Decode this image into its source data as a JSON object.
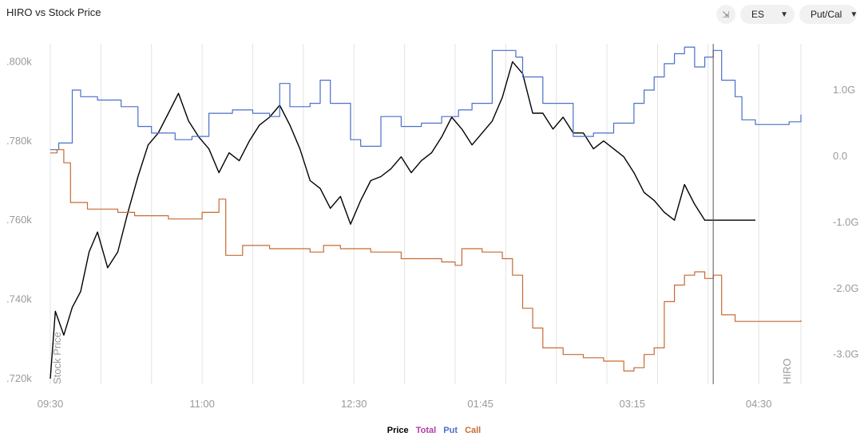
{
  "title": "HIRO vs Stock Price",
  "controls": {
    "collapse_icon": "collapse-icon",
    "ticker": "ES",
    "mode": "Put/Cal"
  },
  "colors": {
    "price": "#000000",
    "total": "#b43ca8",
    "put": "#4a6fc9",
    "call": "#c86a32",
    "grid": "#e3e3e3",
    "axis_text": "#9a9a9a"
  },
  "chart_data": {
    "type": "line",
    "xlabel": "",
    "ylabel_left": "Stock Price",
    "ylabel_right": "HIRO",
    "x_ticks": [
      "09:30",
      "11:00",
      "12:30",
      "01:45",
      "03:15",
      "04:30"
    ],
    "x_range": [
      "09:30",
      "04:55"
    ],
    "y_left_ticks": [
      ".720k",
      ".740k",
      ".760k",
      ".780k",
      ".800k"
    ],
    "y_left_range": [
      0.7186,
      0.8045
    ],
    "y_right_ticks": [
      "1.0G",
      "0.0",
      "-1.0G",
      "-2.0G",
      "-3.0G"
    ],
    "y_right_range": [
      -3.45,
      1.7
    ],
    "legend": [
      "Price",
      "Total",
      "Put",
      "Call"
    ],
    "legend_placement": "bottom",
    "cursor_time": "04:03",
    "series": [
      {
        "name": "Price",
        "axis": "left",
        "step": false,
        "points": [
          [
            "09:30",
            0.72
          ],
          [
            "09:33",
            0.737
          ],
          [
            "09:38",
            0.731
          ],
          [
            "09:43",
            0.738
          ],
          [
            "09:48",
            0.742
          ],
          [
            "09:53",
            0.752
          ],
          [
            "09:58",
            0.757
          ],
          [
            "10:04",
            0.748
          ],
          [
            "10:10",
            0.752
          ],
          [
            "10:16",
            0.762
          ],
          [
            "10:22",
            0.771
          ],
          [
            "10:28",
            0.779
          ],
          [
            "10:34",
            0.782
          ],
          [
            "10:40",
            0.787
          ],
          [
            "10:46",
            0.792
          ],
          [
            "10:52",
            0.785
          ],
          [
            "10:58",
            0.781
          ],
          [
            "11:04",
            0.778
          ],
          [
            "11:10",
            0.772
          ],
          [
            "11:16",
            0.777
          ],
          [
            "11:22",
            0.775
          ],
          [
            "11:28",
            0.78
          ],
          [
            "11:34",
            0.784
          ],
          [
            "11:40",
            0.786
          ],
          [
            "11:46",
            0.789
          ],
          [
            "11:52",
            0.784
          ],
          [
            "11:58",
            0.778
          ],
          [
            "12:04",
            0.77
          ],
          [
            "12:10",
            0.768
          ],
          [
            "12:16",
            0.763
          ],
          [
            "12:22",
            0.766
          ],
          [
            "12:28",
            0.759
          ],
          [
            "12:34",
            0.765
          ],
          [
            "12:40",
            0.77
          ],
          [
            "12:46",
            0.771
          ],
          [
            "12:52",
            0.773
          ],
          [
            "12:58",
            0.776
          ],
          [
            "01:04",
            0.772
          ],
          [
            "01:10",
            0.775
          ],
          [
            "01:16",
            0.777
          ],
          [
            "01:22",
            0.781
          ],
          [
            "01:28",
            0.786
          ],
          [
            "01:34",
            0.783
          ],
          [
            "01:40",
            0.779
          ],
          [
            "01:46",
            0.782
          ],
          [
            "01:52",
            0.785
          ],
          [
            "01:58",
            0.791
          ],
          [
            "02:04",
            0.8
          ],
          [
            "02:10",
            0.797
          ],
          [
            "02:16",
            0.787
          ],
          [
            "02:22",
            0.787
          ],
          [
            "02:28",
            0.783
          ],
          [
            "02:34",
            0.786
          ],
          [
            "02:40",
            0.782
          ],
          [
            "02:46",
            0.782
          ],
          [
            "02:52",
            0.778
          ],
          [
            "02:58",
            0.78
          ],
          [
            "03:04",
            0.778
          ],
          [
            "03:10",
            0.776
          ],
          [
            "03:16",
            0.772
          ],
          [
            "03:22",
            0.767
          ],
          [
            "03:28",
            0.765
          ],
          [
            "03:34",
            0.762
          ],
          [
            "03:40",
            0.76
          ],
          [
            "03:46",
            0.769
          ],
          [
            "03:52",
            0.764
          ],
          [
            "03:58",
            0.76
          ],
          [
            "04:03",
            0.76
          ],
          [
            "04:28",
            0.76
          ]
        ]
      },
      {
        "name": "Put",
        "axis": "right",
        "step": true,
        "points": [
          [
            "09:30",
            0.1
          ],
          [
            "09:35",
            0.2
          ],
          [
            "09:43",
            1.0
          ],
          [
            "09:48",
            0.9
          ],
          [
            "09:58",
            0.85
          ],
          [
            "10:12",
            0.75
          ],
          [
            "10:22",
            0.45
          ],
          [
            "10:30",
            0.35
          ],
          [
            "10:44",
            0.25
          ],
          [
            "10:54",
            0.3
          ],
          [
            "11:04",
            0.65
          ],
          [
            "11:18",
            0.7
          ],
          [
            "11:30",
            0.65
          ],
          [
            "11:40",
            0.6
          ],
          [
            "11:46",
            1.1
          ],
          [
            "11:52",
            0.75
          ],
          [
            "12:04",
            0.8
          ],
          [
            "12:10",
            1.15
          ],
          [
            "12:16",
            0.8
          ],
          [
            "12:28",
            0.25
          ],
          [
            "12:34",
            0.15
          ],
          [
            "12:46",
            0.6
          ],
          [
            "12:58",
            0.45
          ],
          [
            "01:10",
            0.5
          ],
          [
            "01:22",
            0.6
          ],
          [
            "01:32",
            0.7
          ],
          [
            "01:40",
            0.8
          ],
          [
            "01:52",
            1.6
          ],
          [
            "02:06",
            1.5
          ],
          [
            "02:10",
            1.2
          ],
          [
            "02:16",
            1.2
          ],
          [
            "02:22",
            0.8
          ],
          [
            "02:40",
            0.3
          ],
          [
            "02:52",
            0.35
          ],
          [
            "03:04",
            0.5
          ],
          [
            "03:16",
            0.8
          ],
          [
            "03:22",
            1.0
          ],
          [
            "03:28",
            1.2
          ],
          [
            "03:34",
            1.4
          ],
          [
            "03:40",
            1.55
          ],
          [
            "03:46",
            1.65
          ],
          [
            "03:52",
            1.35
          ],
          [
            "03:58",
            1.5
          ],
          [
            "04:03",
            1.6
          ],
          [
            "04:08",
            1.15
          ],
          [
            "04:16",
            0.9
          ],
          [
            "04:20",
            0.55
          ],
          [
            "04:28",
            0.48
          ],
          [
            "04:40",
            0.48
          ],
          [
            "04:48",
            0.52
          ],
          [
            "04:55",
            0.63
          ]
        ]
      },
      {
        "name": "Call",
        "axis": "right",
        "step": true,
        "points": [
          [
            "09:30",
            0.05
          ],
          [
            "09:34",
            0.1
          ],
          [
            "09:38",
            -0.1
          ],
          [
            "09:42",
            -0.7
          ],
          [
            "09:52",
            -0.8
          ],
          [
            "10:10",
            -0.85
          ],
          [
            "10:20",
            -0.9
          ],
          [
            "10:40",
            -0.95
          ],
          [
            "11:00",
            -0.85
          ],
          [
            "11:10",
            -0.65
          ],
          [
            "11:14",
            -1.5
          ],
          [
            "11:24",
            -1.35
          ],
          [
            "11:40",
            -1.4
          ],
          [
            "12:04",
            -1.45
          ],
          [
            "12:12",
            -1.35
          ],
          [
            "12:22",
            -1.4
          ],
          [
            "12:40",
            -1.45
          ],
          [
            "12:58",
            -1.55
          ],
          [
            "01:22",
            -1.6
          ],
          [
            "01:30",
            -1.65
          ],
          [
            "01:34",
            -1.4
          ],
          [
            "01:46",
            -1.45
          ],
          [
            "01:58",
            -1.55
          ],
          [
            "02:04",
            -1.8
          ],
          [
            "02:10",
            -2.3
          ],
          [
            "02:16",
            -2.6
          ],
          [
            "02:22",
            -2.9
          ],
          [
            "02:34",
            -3.0
          ],
          [
            "02:46",
            -3.05
          ],
          [
            "02:58",
            -3.1
          ],
          [
            "03:10",
            -3.25
          ],
          [
            "03:16",
            -3.2
          ],
          [
            "03:22",
            -3.0
          ],
          [
            "03:28",
            -2.9
          ],
          [
            "03:34",
            -2.2
          ],
          [
            "03:40",
            -1.95
          ],
          [
            "03:46",
            -1.8
          ],
          [
            "03:52",
            -1.75
          ],
          [
            "03:58",
            -1.85
          ],
          [
            "04:03",
            -1.8
          ],
          [
            "04:08",
            -2.4
          ],
          [
            "04:16",
            -2.5
          ],
          [
            "04:40",
            -2.5
          ],
          [
            "04:55",
            -2.48
          ]
        ]
      }
    ]
  }
}
